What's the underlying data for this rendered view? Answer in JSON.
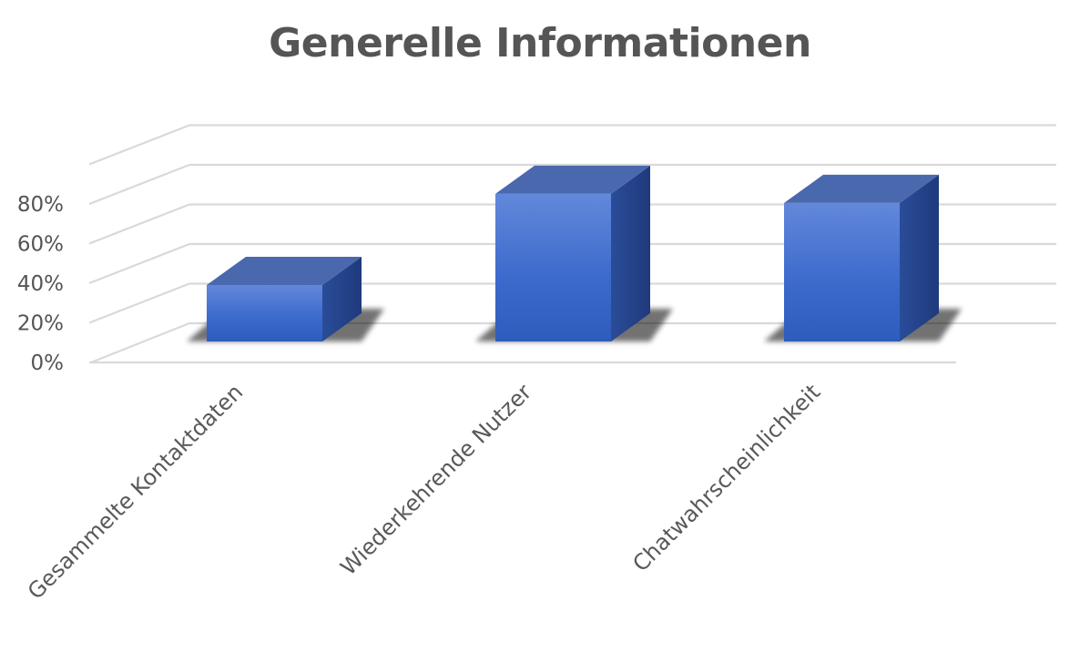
{
  "chart_data": {
    "type": "bar",
    "style": "3d-column",
    "title": "Generelle Informationen",
    "categories": [
      "Gesammelte Kontaktdaten",
      "Wiederkehrende Nutzer",
      "Chatwahrscheinlichkeit"
    ],
    "series": [
      {
        "values": [
          0.31,
          0.81,
          0.76
        ]
      }
    ],
    "y_tick_labels": [
      "0%",
      "20%",
      "40%",
      "60%",
      "80%"
    ],
    "ylim": [
      0,
      1.0
    ],
    "grid": true,
    "legend": "none",
    "colors": {
      "bar_front_top": "#5e84d8",
      "bar_front_bottom": "#2f5fbf",
      "bar_side": "#22418a",
      "bar_top": "#4a68ae",
      "grid": "#d9d9d9",
      "text": "#595959"
    }
  }
}
